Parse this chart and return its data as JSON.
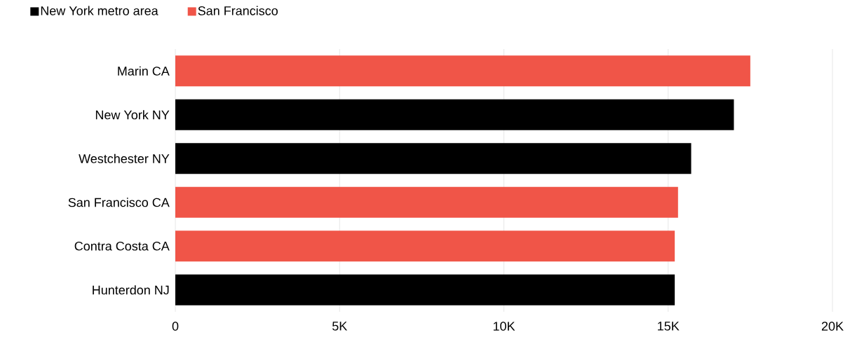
{
  "chart_data": {
    "type": "bar",
    "orientation": "horizontal",
    "stacked": true,
    "categories": [
      "Marin CA",
      "New York NY",
      "Westchester NY",
      "San Francisco CA",
      "Contra Costa CA",
      "Hunterdon NJ"
    ],
    "series": [
      {
        "name": "New York metro area",
        "color": "#000000",
        "values": [
          null,
          17.0,
          15.7,
          null,
          null,
          15.2
        ]
      },
      {
        "name": "San Francisco",
        "color": "#f05548",
        "values": [
          17.5,
          null,
          null,
          15.3,
          15.2,
          null
        ]
      }
    ],
    "xlim": [
      0,
      20
    ],
    "xticks": [
      {
        "value": 0,
        "label": "0"
      },
      {
        "value": 5,
        "label": "5K"
      },
      {
        "value": 10,
        "label": "10K"
      },
      {
        "value": 15,
        "label": "15K"
      },
      {
        "value": 20,
        "label": "20K"
      }
    ],
    "grid": "x",
    "legend": "top left"
  }
}
